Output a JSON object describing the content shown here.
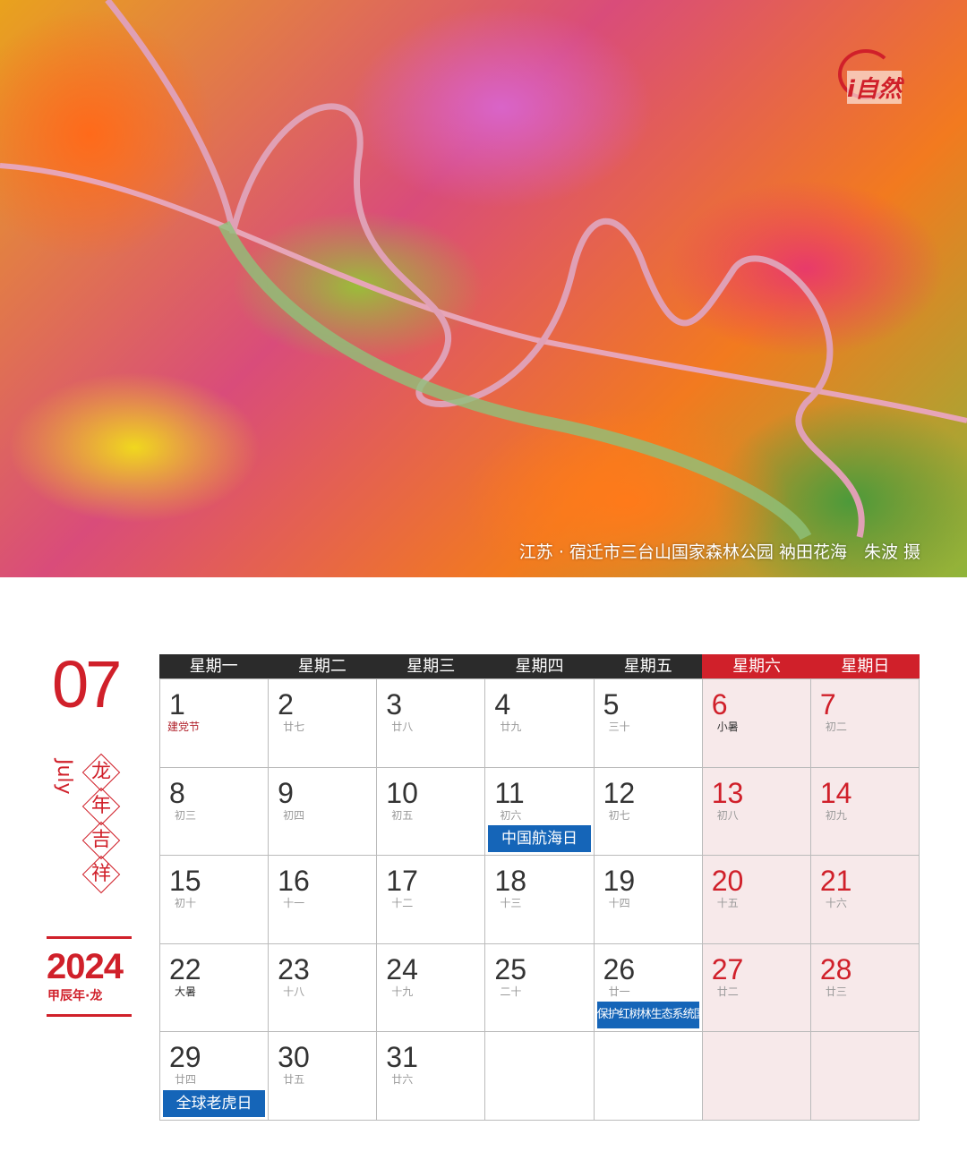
{
  "photo": {
    "caption": "江苏 · 宿迁市三台山国家森林公园 衲田花海　朱波 摄",
    "logo": "i自然"
  },
  "side": {
    "month_num": "07",
    "month_en": "July",
    "motto": [
      "龙",
      "年",
      "吉",
      "祥"
    ],
    "year": "2024",
    "ganzhi": "甲辰年·龙"
  },
  "weekdays": [
    "星期一",
    "星期二",
    "星期三",
    "星期四",
    "星期五",
    "星期六",
    "星期日"
  ],
  "colors": {
    "accent": "#d0202a",
    "header": "#2b2b2b",
    "tag": "#1565b8",
    "weekend_bg": "#f7e9ea"
  },
  "weeks": [
    [
      {
        "d": "1",
        "l": "建党节",
        "t": "fest"
      },
      {
        "d": "2",
        "l": "廿七"
      },
      {
        "d": "3",
        "l": "廿八"
      },
      {
        "d": "4",
        "l": "廿九"
      },
      {
        "d": "5",
        "l": "三十"
      },
      {
        "d": "6",
        "l": "小暑",
        "t": "term"
      },
      {
        "d": "7",
        "l": "初二"
      }
    ],
    [
      {
        "d": "8",
        "l": "初三"
      },
      {
        "d": "9",
        "l": "初四"
      },
      {
        "d": "10",
        "l": "初五"
      },
      {
        "d": "11",
        "l": "初六",
        "tag": "中国航海日"
      },
      {
        "d": "12",
        "l": "初七"
      },
      {
        "d": "13",
        "l": "初八"
      },
      {
        "d": "14",
        "l": "初九"
      }
    ],
    [
      {
        "d": "15",
        "l": "初十"
      },
      {
        "d": "16",
        "l": "十一"
      },
      {
        "d": "17",
        "l": "十二"
      },
      {
        "d": "18",
        "l": "十三"
      },
      {
        "d": "19",
        "l": "十四"
      },
      {
        "d": "20",
        "l": "十五"
      },
      {
        "d": "21",
        "l": "十六"
      }
    ],
    [
      {
        "d": "22",
        "l": "大暑",
        "t": "term"
      },
      {
        "d": "23",
        "l": "十八"
      },
      {
        "d": "24",
        "l": "十九"
      },
      {
        "d": "25",
        "l": "二十"
      },
      {
        "d": "26",
        "l": "廿一",
        "tag": "保护红树林生态系统国际日"
      },
      {
        "d": "27",
        "l": "廿二"
      },
      {
        "d": "28",
        "l": "廿三"
      }
    ],
    [
      {
        "d": "29",
        "l": "廿四",
        "tag": "全球老虎日"
      },
      {
        "d": "30",
        "l": "廿五"
      },
      {
        "d": "31",
        "l": "廿六"
      },
      {},
      {},
      {},
      {}
    ]
  ]
}
